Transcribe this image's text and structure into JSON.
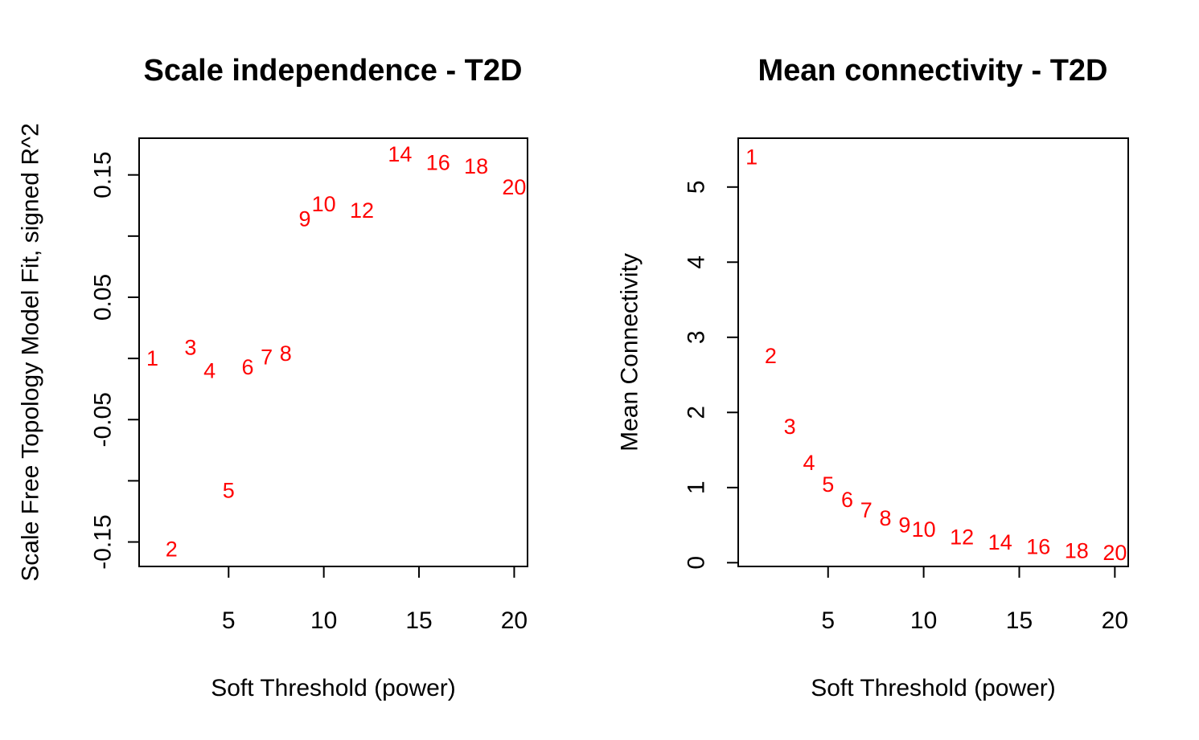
{
  "chart_data": [
    {
      "type": "scatter",
      "title": "Scale independence - T2D",
      "xlabel": "Soft Threshold (power)",
      "ylabel": "Scale Free Topology Model Fit, signed R^2",
      "xlim": [
        0.3,
        20.7
      ],
      "ylim": [
        -0.17,
        0.18
      ],
      "xticks": [
        5,
        10,
        15,
        20
      ],
      "yticks": [
        -0.15,
        -0.1,
        -0.05,
        0,
        0.05,
        0.1,
        0.15
      ],
      "ytick_labels": [
        "-0.15",
        "",
        "-0.05",
        "",
        "0.05",
        "",
        "0.15"
      ],
      "point_color": "#ff0000",
      "points": [
        {
          "x": 1,
          "y": 0.0,
          "label": "1"
        },
        {
          "x": 2,
          "y": -0.156,
          "label": "2"
        },
        {
          "x": 3,
          "y": 0.009,
          "label": "3"
        },
        {
          "x": 4,
          "y": -0.01,
          "label": "4"
        },
        {
          "x": 5,
          "y": -0.108,
          "label": "5"
        },
        {
          "x": 6,
          "y": -0.007,
          "label": "6"
        },
        {
          "x": 7,
          "y": 0.001,
          "label": "7"
        },
        {
          "x": 8,
          "y": 0.004,
          "label": "8"
        },
        {
          "x": 9,
          "y": 0.114,
          "label": "9"
        },
        {
          "x": 10,
          "y": 0.126,
          "label": "10"
        },
        {
          "x": 12,
          "y": 0.121,
          "label": "12"
        },
        {
          "x": 14,
          "y": 0.167,
          "label": "14"
        },
        {
          "x": 16,
          "y": 0.16,
          "label": "16"
        },
        {
          "x": 18,
          "y": 0.157,
          "label": "18"
        },
        {
          "x": 20,
          "y": 0.14,
          "label": "20"
        }
      ]
    },
    {
      "type": "scatter",
      "title": "Mean connectivity - T2D",
      "xlabel": "Soft Threshold (power)",
      "ylabel": "Mean Connectivity",
      "xlim": [
        0.3,
        20.7
      ],
      "ylim": [
        -0.05,
        5.65
      ],
      "xticks": [
        5,
        10,
        15,
        20
      ],
      "yticks": [
        0,
        1,
        2,
        3,
        4,
        5
      ],
      "ytick_labels": [
        "0",
        "1",
        "2",
        "3",
        "4",
        "5"
      ],
      "point_color": "#ff0000",
      "points": [
        {
          "x": 1,
          "y": 5.4,
          "label": "1"
        },
        {
          "x": 2,
          "y": 2.75,
          "label": "2"
        },
        {
          "x": 3,
          "y": 1.81,
          "label": "3"
        },
        {
          "x": 4,
          "y": 1.33,
          "label": "4"
        },
        {
          "x": 5,
          "y": 1.04,
          "label": "5"
        },
        {
          "x": 6,
          "y": 0.84,
          "label": "6"
        },
        {
          "x": 7,
          "y": 0.7,
          "label": "7"
        },
        {
          "x": 8,
          "y": 0.59,
          "label": "8"
        },
        {
          "x": 9,
          "y": 0.5,
          "label": "9"
        },
        {
          "x": 10,
          "y": 0.44,
          "label": "10"
        },
        {
          "x": 12,
          "y": 0.34,
          "label": "12"
        },
        {
          "x": 14,
          "y": 0.27,
          "label": "14"
        },
        {
          "x": 16,
          "y": 0.21,
          "label": "16"
        },
        {
          "x": 18,
          "y": 0.16,
          "label": "18"
        },
        {
          "x": 20,
          "y": 0.13,
          "label": "20"
        }
      ]
    }
  ]
}
